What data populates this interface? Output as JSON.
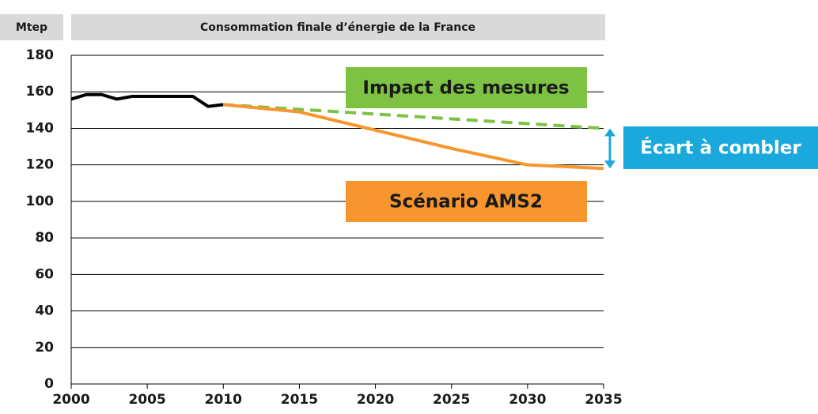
{
  "chart_data": {
    "type": "line",
    "ylabel": "Mtep",
    "title": "Consommation finale d’énergie de la France",
    "xlim": [
      2000,
      2035
    ],
    "xticks": [
      2000,
      2005,
      2010,
      2015,
      2020,
      2025,
      2030,
      2035
    ],
    "ylim": [
      0,
      180
    ],
    "yticks": [
      0,
      20,
      40,
      60,
      80,
      100,
      120,
      140,
      160,
      180
    ],
    "grid": true,
    "series": [
      {
        "color": "#000000",
        "x": [
          2000,
          2001,
          2002,
          2003,
          2004,
          2005,
          2006,
          2007,
          2008,
          2009,
          2010
        ],
        "values": [
          156,
          158.5,
          158.5,
          156,
          157.5,
          157.5,
          157.5,
          157.5,
          157.5,
          152,
          153
        ]
      },
      {
        "name": "Impact des mesures",
        "color": "#7dc243",
        "dashed": true,
        "x": [
          2010,
          2035
        ],
        "values": [
          153,
          140
        ]
      },
      {
        "name": "Scénario AMS2",
        "color": "#f7962e",
        "x": [
          2010,
          2015,
          2020,
          2025,
          2030,
          2035
        ],
        "values": [
          153,
          149,
          139,
          129,
          120,
          118
        ]
      }
    ],
    "annotations": [
      {
        "text": "Écart à combler",
        "color": "#1ba8dc"
      }
    ]
  }
}
